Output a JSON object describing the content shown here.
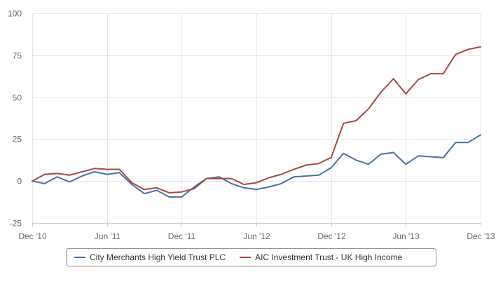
{
  "chart_data": {
    "type": "line",
    "title": "",
    "xlabel": "",
    "ylabel": "",
    "ylim": [
      -25,
      100
    ],
    "grid": true,
    "legend_position": "bottom",
    "y_ticks": [
      "100",
      "75",
      "50",
      "25",
      "0",
      "-25"
    ],
    "x_ticks": [
      {
        "label": "Dec '10",
        "x": "2010-12"
      },
      {
        "label": "Jun '11",
        "x": "2011-06"
      },
      {
        "label": "Dec '11",
        "x": "2011-12"
      },
      {
        "label": "Jun '12",
        "x": "2012-06"
      },
      {
        "label": "Dec '12",
        "x": "2012-12"
      },
      {
        "label": "Jun '13",
        "x": "2013-06"
      },
      {
        "label": "Dec '13",
        "x": "2013-12"
      }
    ],
    "x": [
      "2010-12",
      "2011-01",
      "2011-02",
      "2011-03",
      "2011-04",
      "2011-05",
      "2011-06",
      "2011-07",
      "2011-08",
      "2011-09",
      "2011-10",
      "2011-11",
      "2011-12",
      "2012-01",
      "2012-02",
      "2012-03",
      "2012-04",
      "2012-05",
      "2012-06",
      "2012-07",
      "2012-08",
      "2012-09",
      "2012-10",
      "2012-11",
      "2012-12",
      "2013-01",
      "2013-02",
      "2013-03",
      "2013-04",
      "2013-05",
      "2013-06",
      "2013-07",
      "2013-08",
      "2013-09",
      "2013-10",
      "2013-11",
      "2013-12"
    ],
    "series": [
      {
        "name": "City Merchants High Yield Trust PLC",
        "color": "#4572a7",
        "values": [
          0,
          -1.5,
          2.5,
          -0.5,
          3,
          5.5,
          4,
          5,
          -2,
          -7.5,
          -5.5,
          -9.5,
          -9.5,
          -3.5,
          1.5,
          2.5,
          -1.5,
          -4,
          -5,
          -3.5,
          -1.5,
          2.5,
          3,
          3.5,
          8,
          16.5,
          12.5,
          10,
          16,
          17,
          10,
          15,
          14.5,
          14,
          23,
          23,
          27.5
        ]
      },
      {
        "name": "AIC Investment Trust - UK High Income",
        "color": "#aa4643",
        "values": [
          0,
          4,
          4.5,
          3.5,
          5.5,
          7.5,
          7,
          7,
          -1,
          -5,
          -4,
          -7,
          -6.5,
          -4.5,
          1.5,
          1.5,
          1.5,
          -2,
          -1,
          2,
          4,
          7,
          9.5,
          10.5,
          14,
          34.5,
          36,
          43,
          53,
          61,
          52,
          60.5,
          64,
          64,
          75.5,
          78.5,
          80
        ]
      }
    ]
  }
}
